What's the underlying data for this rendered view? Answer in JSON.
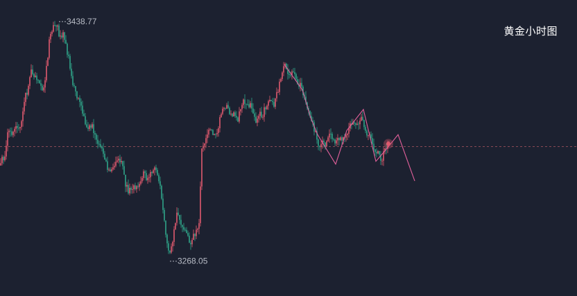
{
  "title": "黄金小时图",
  "colors": {
    "background": "#1c2130",
    "up": "#e05a6e",
    "down": "#2fa489",
    "pattern_line": "#e2609b",
    "current_price_line": "#8a4a55",
    "label": "#b8bcc6"
  },
  "chart_data": {
    "type": "candlestick",
    "title": "黄金小时图",
    "price_high_label": "3438.77",
    "price_low_label": "3268.05",
    "ylim": [
      3243,
      3454
    ],
    "current_price": 3349.5,
    "grid": false,
    "path": [
      [
        0,
        3336
      ],
      [
        8,
        3346
      ],
      [
        12,
        3362
      ],
      [
        16,
        3358
      ],
      [
        22,
        3366
      ],
      [
        28,
        3362
      ],
      [
        32,
        3372
      ],
      [
        36,
        3384
      ],
      [
        40,
        3390
      ],
      [
        44,
        3405
      ],
      [
        48,
        3398
      ],
      [
        52,
        3400
      ],
      [
        56,
        3393
      ],
      [
        60,
        3390
      ],
      [
        64,
        3395
      ],
      [
        68,
        3410
      ],
      [
        72,
        3428
      ],
      [
        76,
        3433
      ],
      [
        80,
        3438
      ],
      [
        84,
        3432
      ],
      [
        88,
        3426
      ],
      [
        92,
        3430
      ],
      [
        96,
        3418
      ],
      [
        100,
        3410
      ],
      [
        104,
        3397
      ],
      [
        108,
        3390
      ],
      [
        112,
        3385
      ],
      [
        116,
        3378
      ],
      [
        120,
        3372
      ],
      [
        124,
        3366
      ],
      [
        128,
        3363
      ],
      [
        132,
        3366
      ],
      [
        136,
        3360
      ],
      [
        140,
        3353
      ],
      [
        144,
        3350
      ],
      [
        148,
        3345
      ],
      [
        152,
        3338
      ],
      [
        156,
        3334
      ],
      [
        160,
        3330
      ],
      [
        164,
        3335
      ],
      [
        168,
        3340
      ],
      [
        172,
        3342
      ],
      [
        176,
        3337
      ],
      [
        180,
        3325
      ],
      [
        184,
        3318
      ],
      [
        188,
        3320
      ],
      [
        192,
        3322
      ],
      [
        196,
        3318
      ],
      [
        200,
        3322
      ],
      [
        204,
        3328
      ],
      [
        208,
        3330
      ],
      [
        212,
        3326
      ],
      [
        216,
        3330
      ],
      [
        220,
        3332
      ],
      [
        224,
        3333
      ],
      [
        228,
        3330
      ],
      [
        232,
        3318
      ],
      [
        236,
        3300
      ],
      [
        240,
        3285
      ],
      [
        244,
        3270
      ],
      [
        248,
        3278
      ],
      [
        252,
        3292
      ],
      [
        256,
        3303
      ],
      [
        260,
        3296
      ],
      [
        264,
        3290
      ],
      [
        268,
        3287
      ],
      [
        272,
        3284
      ],
      [
        276,
        3280
      ],
      [
        280,
        3287
      ],
      [
        284,
        3288
      ],
      [
        288,
        3295
      ],
      [
        290,
        3345
      ],
      [
        294,
        3352
      ],
      [
        298,
        3358
      ],
      [
        302,
        3362
      ],
      [
        306,
        3360
      ],
      [
        310,
        3356
      ],
      [
        314,
        3361
      ],
      [
        318,
        3372
      ],
      [
        322,
        3380
      ],
      [
        326,
        3378
      ],
      [
        330,
        3375
      ],
      [
        334,
        3372
      ],
      [
        338,
        3373
      ],
      [
        342,
        3368
      ],
      [
        346,
        3375
      ],
      [
        350,
        3382
      ],
      [
        354,
        3379
      ],
      [
        358,
        3377
      ],
      [
        362,
        3380
      ],
      [
        366,
        3372
      ],
      [
        370,
        3368
      ],
      [
        374,
        3375
      ],
      [
        378,
        3372
      ],
      [
        382,
        3376
      ],
      [
        386,
        3380
      ],
      [
        390,
        3383
      ],
      [
        394,
        3378
      ],
      [
        398,
        3385
      ],
      [
        402,
        3392
      ],
      [
        406,
        3398
      ],
      [
        410,
        3408
      ],
      [
        414,
        3403
      ],
      [
        418,
        3400
      ],
      [
        422,
        3402
      ],
      [
        426,
        3398
      ],
      [
        430,
        3395
      ],
      [
        434,
        3393
      ],
      [
        438,
        3386
      ],
      [
        442,
        3378
      ],
      [
        446,
        3373
      ],
      [
        450,
        3367
      ],
      [
        454,
        3360
      ],
      [
        458,
        3353
      ],
      [
        462,
        3348
      ],
      [
        466,
        3355
      ],
      [
        470,
        3350
      ],
      [
        474,
        3358
      ],
      [
        478,
        3356
      ],
      [
        482,
        3352
      ],
      [
        486,
        3355
      ],
      [
        490,
        3356
      ],
      [
        494,
        3354
      ],
      [
        498,
        3358
      ],
      [
        502,
        3360
      ],
      [
        506,
        3366
      ],
      [
        510,
        3370
      ],
      [
        514,
        3364
      ],
      [
        518,
        3368
      ],
      [
        522,
        3370
      ],
      [
        526,
        3362
      ],
      [
        530,
        3356
      ],
      [
        534,
        3360
      ],
      [
        538,
        3350
      ],
      [
        542,
        3343
      ],
      [
        546,
        3345
      ],
      [
        550,
        3340
      ],
      [
        554,
        3346
      ],
      [
        558,
        3350
      ],
      [
        562,
        3351
      ]
    ],
    "pattern_points": [
      [
        410,
        3408
      ],
      [
        436,
        3390
      ],
      [
        448,
        3370
      ],
      [
        458,
        3358
      ],
      [
        484,
        3337
      ],
      [
        500,
        3361
      ],
      [
        524,
        3376
      ],
      [
        542,
        3339
      ],
      [
        556,
        3347
      ],
      [
        574,
        3358
      ],
      [
        598,
        3325
      ]
    ]
  }
}
